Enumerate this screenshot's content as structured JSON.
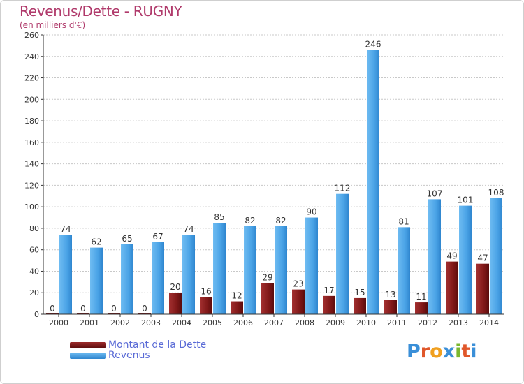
{
  "header": {
    "title": "Revenus/Dette - RUGNY",
    "subtitle": "(en milliers d'€)"
  },
  "colors": {
    "dette": "#6b1010",
    "dette_light": "#9a2a2a",
    "revenus": "#2f86cf",
    "revenus_light": "#5fb0ee",
    "title": "#b03a6b",
    "legend_text": "#5a6bd6"
  },
  "chart_data": {
    "type": "bar",
    "categories": [
      "2000",
      "2001",
      "2002",
      "2003",
      "2004",
      "2005",
      "2006",
      "2007",
      "2008",
      "2009",
      "2010",
      "2011",
      "2012",
      "2013",
      "2014"
    ],
    "series": [
      {
        "name": "Montant de la Dette",
        "values": [
          0,
          0,
          0,
          0,
          20,
          16,
          12,
          29,
          23,
          17,
          15,
          13,
          11,
          49,
          47
        ]
      },
      {
        "name": "Revenus",
        "values": [
          74,
          62,
          65,
          67,
          74,
          85,
          82,
          82,
          90,
          112,
          246,
          81,
          107,
          101,
          108
        ]
      }
    ],
    "yticks": [
      0,
      20,
      40,
      60,
      80,
      100,
      120,
      140,
      160,
      180,
      200,
      220,
      240,
      260
    ],
    "ylim": [
      0,
      260
    ],
    "grid": true,
    "legend_position": "bottom-left"
  },
  "legend": {
    "items": [
      {
        "label": "Montant de la Dette"
      },
      {
        "label": "Revenus"
      }
    ]
  },
  "logo": {
    "letters": [
      "P",
      "r",
      "o",
      "x",
      "i",
      "t",
      "i"
    ],
    "colors": [
      "#3a8fd8",
      "#e0572a",
      "#f0a020",
      "#3a8fd8",
      "#7ab830",
      "#e0572a",
      "#3a8fd8"
    ]
  }
}
